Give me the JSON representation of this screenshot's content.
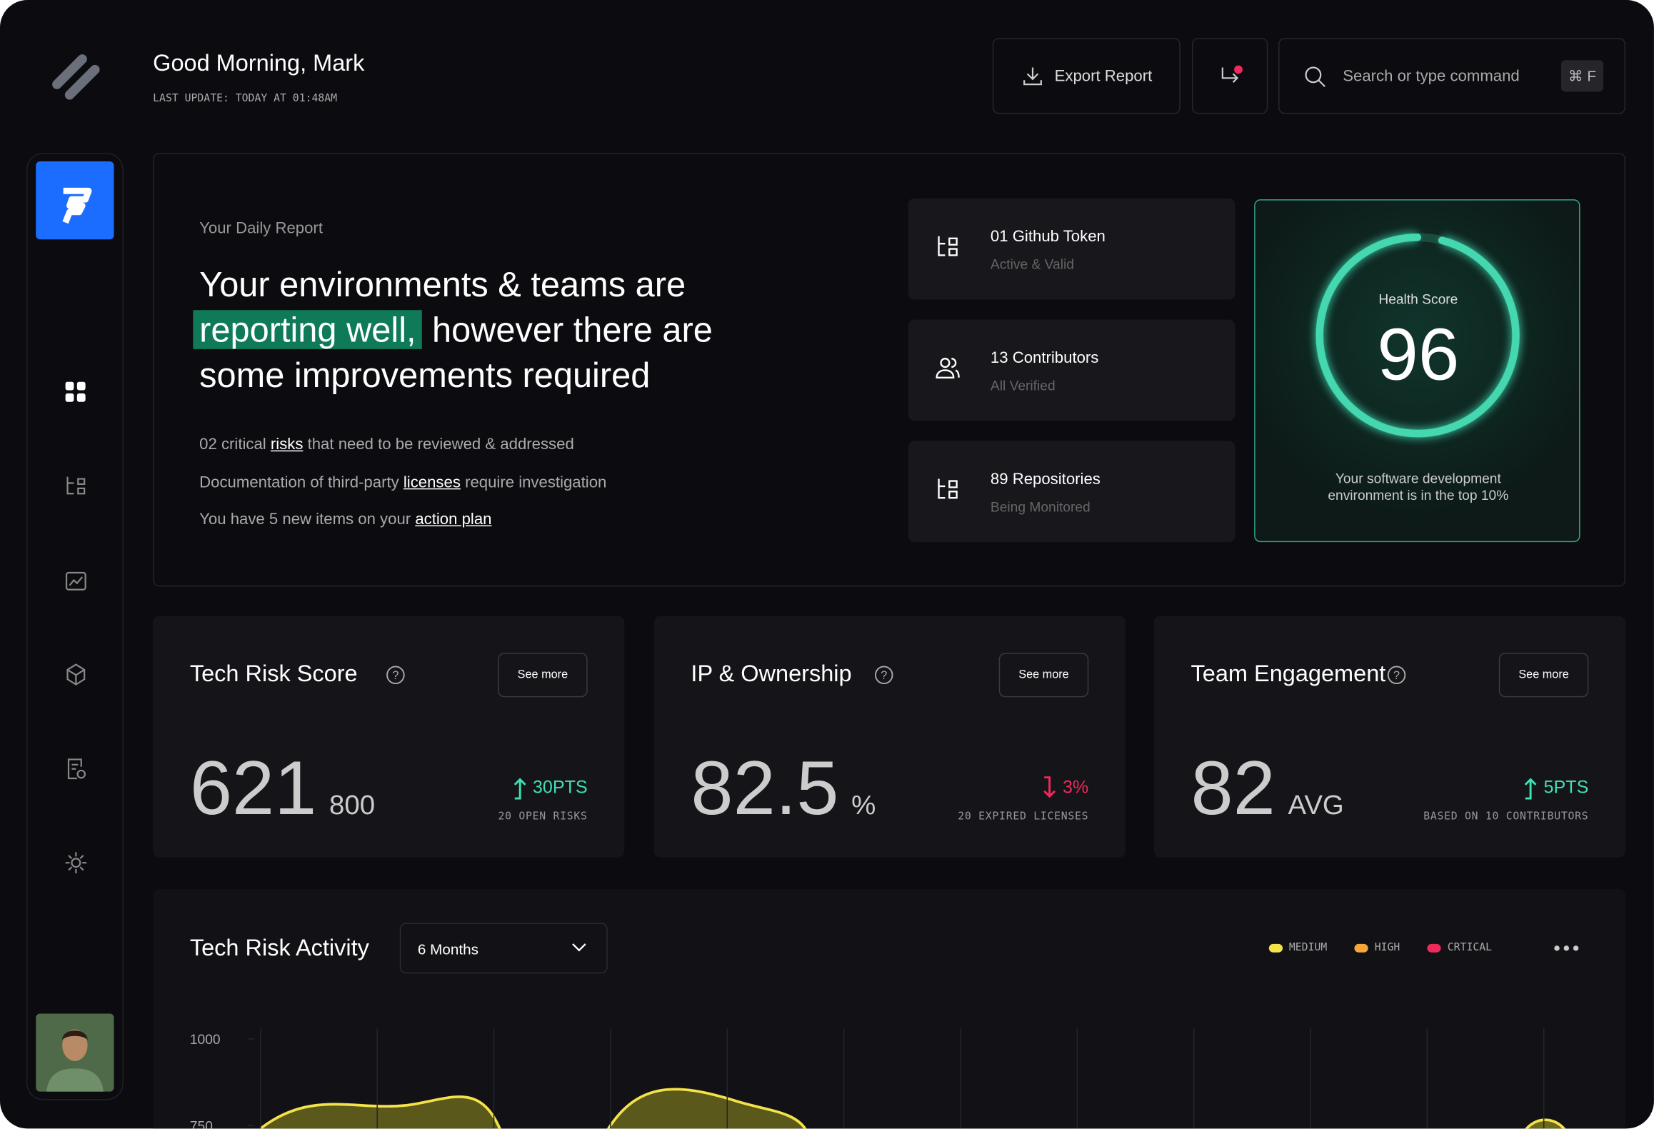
{
  "header": {
    "greeting": "Good Morning, Mark",
    "last_update": "LAST UPDATE: TODAY AT 01:48AM",
    "export_button": "Export Report",
    "search_placeholder": "Search or type command",
    "search_shortcut": "⌘ F"
  },
  "report": {
    "label": "Your Daily Report",
    "headline_start": "Your environments & teams are",
    "headline_highlight": "reporting well,",
    "headline_end": "however there are some improvements required",
    "items": [
      {
        "before": "02 critical ",
        "link": "risks",
        "after": " that need to be reviewed & addressed"
      },
      {
        "before": "Documentation of third-party ",
        "link": "licenses",
        "after": " require investigation"
      },
      {
        "before": "You have 5 new items on your ",
        "link": "action plan"
      }
    ]
  },
  "stats": [
    {
      "title": "01 Github Token",
      "subtitle": "Active & Valid"
    },
    {
      "title": "13 Contributors",
      "subtitle": "All Verified"
    },
    {
      "title": "89 Repositories",
      "subtitle": "Being Monitored"
    }
  ],
  "health": {
    "label": "Health Score",
    "score": 96,
    "max": 100,
    "caption": "Your software development environment is in the top 10%"
  },
  "metrics": [
    {
      "title": "Tech Risk Score",
      "button": "See more",
      "value": 621,
      "unit": "800",
      "delta": "30PTS",
      "direction": "up",
      "note": "20 OPEN RISKS"
    },
    {
      "title": "IP & Ownership",
      "button": "See more",
      "value": 82.5,
      "unit": "%",
      "delta": "3%",
      "direction": "down",
      "note": "20 EXPIRED LICENSES"
    },
    {
      "title": "Team Engagement",
      "button": "See more",
      "value": 82,
      "unit": "AVG",
      "delta": "5PTS",
      "direction": "up",
      "note": "BASED ON 10 CONTRIBUTORS"
    }
  ],
  "activity": {
    "title": "Tech Risk Activity",
    "range": "6 Months",
    "legend": [
      {
        "name": "MEDIUM",
        "color": "#f3e24a"
      },
      {
        "name": "HIGH",
        "color": "#f5a73a"
      },
      {
        "name": "CRTICAL",
        "color": "#ee2a5c"
      }
    ],
    "yticks": [
      1000,
      750
    ]
  }
}
